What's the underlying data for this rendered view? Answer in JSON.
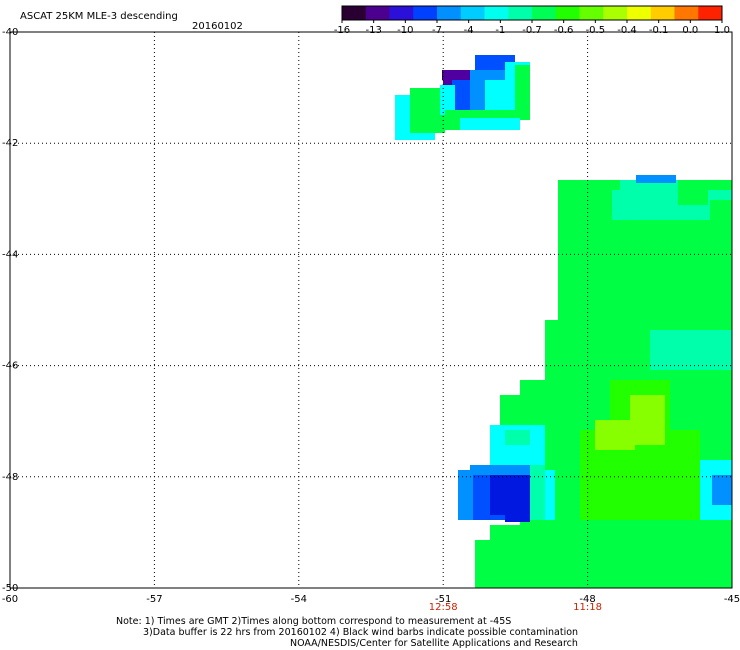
{
  "header": {
    "title": "ASCAT 25KM MLE-3 descending",
    "date": "20160102"
  },
  "colorbar": {
    "colors": [
      "#2a0033",
      "#4b0090",
      "#2a10d8",
      "#0040ff",
      "#0090ff",
      "#00ccff",
      "#00ffee",
      "#00ffaa",
      "#00ff55",
      "#22ff00",
      "#66ff00",
      "#aaff00",
      "#eeff00",
      "#ffcc00",
      "#ff7700",
      "#ff2200"
    ],
    "tick_labels": [
      "-16",
      "-13",
      "-10",
      "-7",
      "-4",
      "-1",
      "-0.7",
      "-0.6",
      "-0.5",
      "-0.4",
      "-0.1",
      "0.0",
      "1.0"
    ]
  },
  "axes": {
    "x_ticks": [
      "-60",
      "-57",
      "-54",
      "-51",
      "-48",
      "-45"
    ],
    "y_ticks": [
      "-40",
      "-42",
      "-44",
      "-46",
      "-48",
      "-50"
    ],
    "time_labels": [
      {
        "lon": -51,
        "text": "12:58"
      },
      {
        "lon": -48,
        "text": "11:18"
      }
    ],
    "xlim": [
      -60,
      -45
    ],
    "ylim": [
      -50,
      -40
    ]
  },
  "data_colors": {
    "blue_dark": "#0018e0",
    "blue": "#0050ff",
    "blue_light": "#0090ff",
    "cyan": "#00ffff",
    "cyan_green": "#00ffaa",
    "green": "#00ff44",
    "green_bright": "#22ff00",
    "yellow_green": "#88ff00",
    "purple_dark": "#2a0033",
    "purple": "#5000a0"
  },
  "footer": {
    "line1": "Note: 1) Times are GMT 2)Times along bottom correspond to measurement at -45S",
    "line2": "3)Data buffer is 22 hrs from 20160102 4) Black wind barbs indicate possible contamination",
    "line3": "NOAA/NESDIS/Center for Satellite Applications and Research"
  }
}
